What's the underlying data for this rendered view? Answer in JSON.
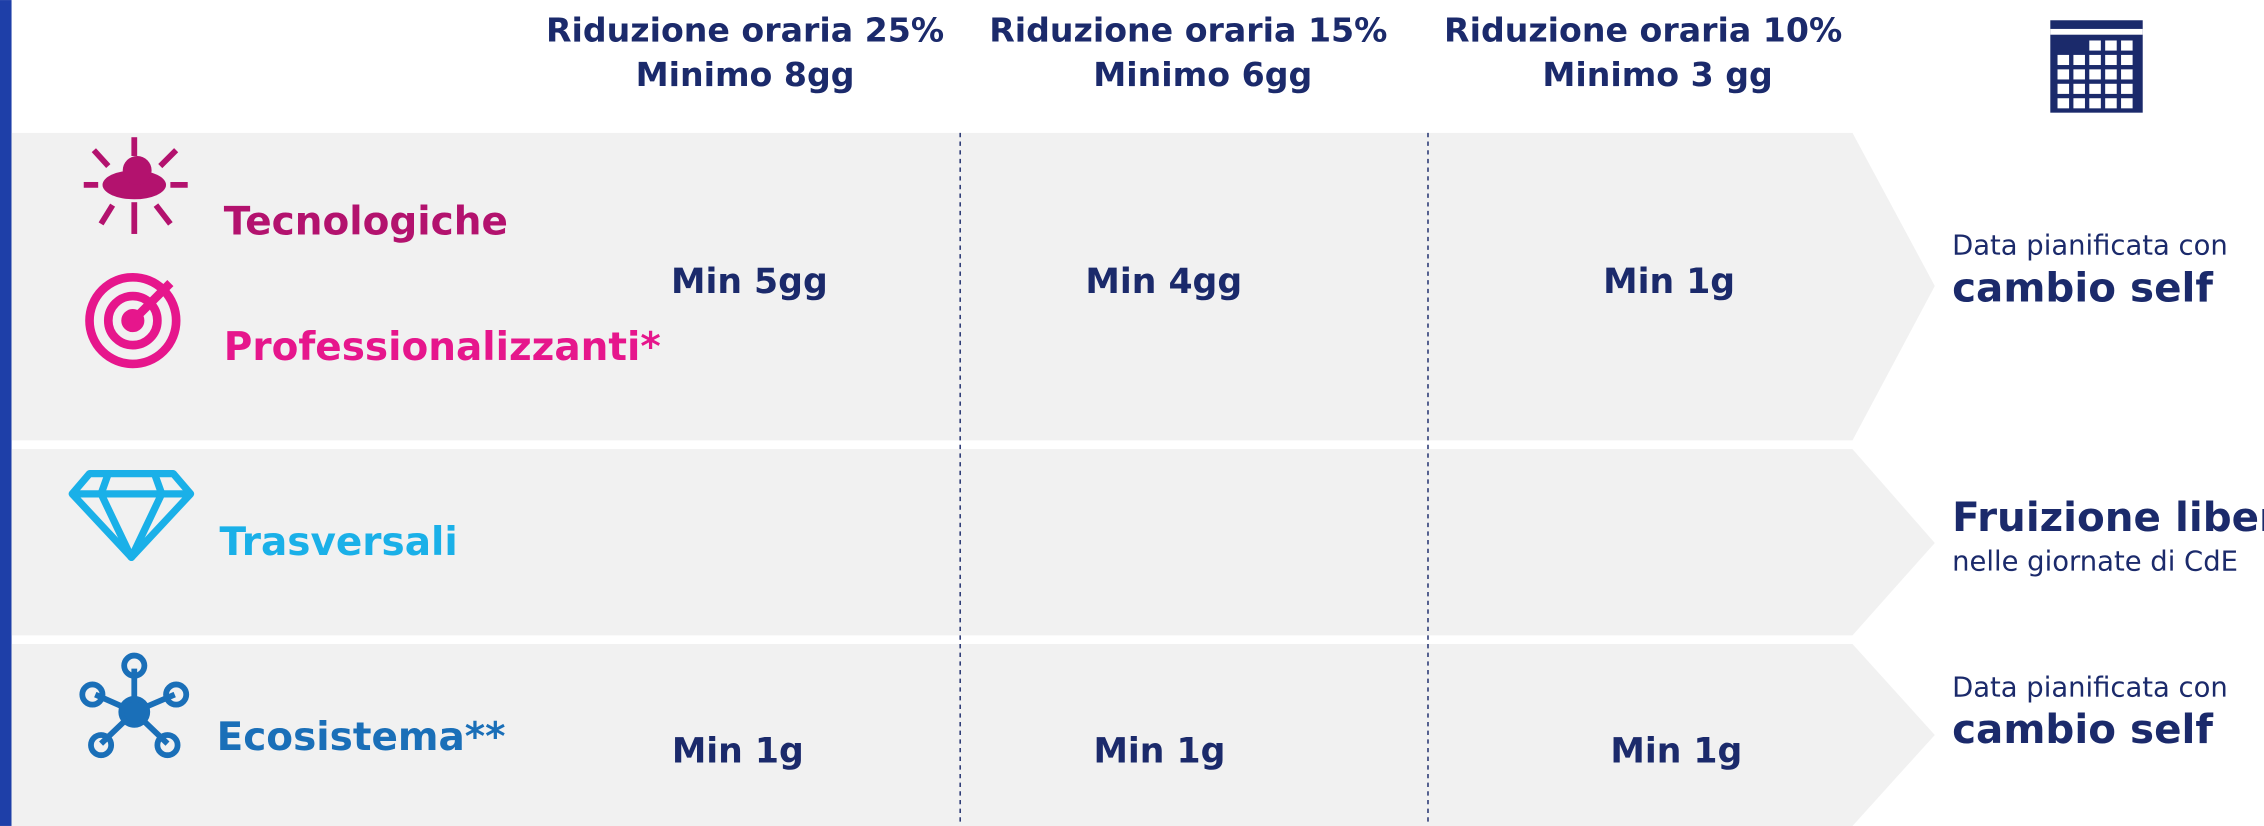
{
  "header": {
    "columns": [
      {
        "line1": "Riduzione oraria 25%",
        "line2": "Minimo 8gg"
      },
      {
        "line1": "Riduzione oraria 15%",
        "line2": "Minimo 6gg"
      },
      {
        "line1": "Riduzione oraria 10%",
        "line2": "Minimo 3 gg"
      }
    ]
  },
  "rows": [
    {
      "categories": [
        "Tecnologiche",
        "Professionalizzanti*"
      ],
      "cells": [
        "Min 5gg",
        "Min 4gg",
        "Min 1g"
      ],
      "note": {
        "line1": "Data pianificata con",
        "line2": "cambio self"
      }
    },
    {
      "categories": [
        "Trasversali"
      ],
      "note": {
        "line1": "Fruizione libera",
        "line2": "nelle giornate di CdE"
      }
    },
    {
      "categories": [
        "Ecosistema**"
      ],
      "cells": [
        "Min 1g",
        "Min 1g",
        "Min 1g"
      ],
      "note": {
        "line1": "Data pianificata con",
        "line2": "cambio self"
      }
    }
  ]
}
